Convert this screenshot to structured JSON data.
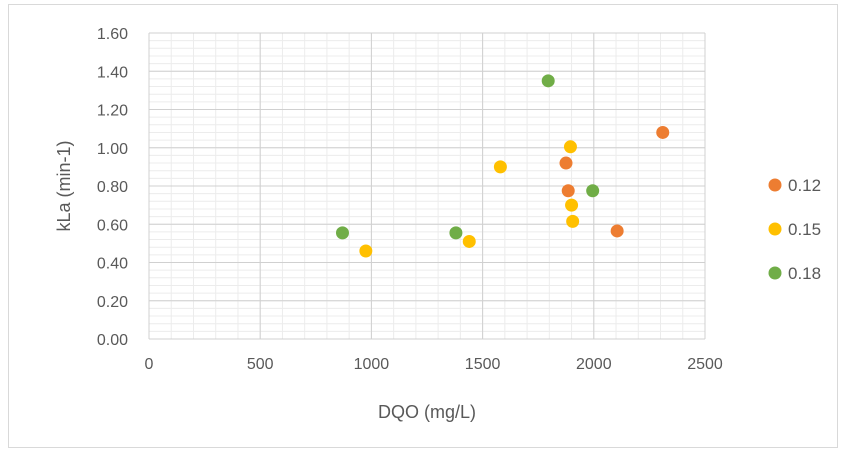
{
  "chart_data": {
    "type": "scatter",
    "title": "",
    "xlabel": "DQO (mg/L)",
    "ylabel": "kLa (min-1)",
    "xlim": [
      0,
      2500
    ],
    "ylim": [
      0,
      1.6
    ],
    "x_ticks": [
      "0",
      "500",
      "1000",
      "1500",
      "2000",
      "2500"
    ],
    "y_ticks": [
      "0.00",
      "0.20",
      "0.40",
      "0.60",
      "0.80",
      "1.00",
      "1.20",
      "1.40",
      "1.60"
    ],
    "grid": true,
    "legend_position": "right",
    "series": [
      {
        "name": "0.12",
        "color": "#ED7D31",
        "points": [
          [
            1875,
            0.92
          ],
          [
            1885,
            0.775
          ],
          [
            2105,
            0.565
          ],
          [
            2310,
            1.08
          ]
        ]
      },
      {
        "name": "0.15",
        "color": "#FFC000",
        "points": [
          [
            975,
            0.46
          ],
          [
            1440,
            0.51
          ],
          [
            1580,
            0.9
          ],
          [
            1895,
            1.005
          ],
          [
            1900,
            0.7
          ],
          [
            1905,
            0.615
          ]
        ]
      },
      {
        "name": "0.18",
        "color": "#70AD47",
        "points": [
          [
            870,
            0.555
          ],
          [
            1380,
            0.555
          ],
          [
            1795,
            1.35
          ],
          [
            1995,
            0.775
          ]
        ]
      }
    ]
  }
}
